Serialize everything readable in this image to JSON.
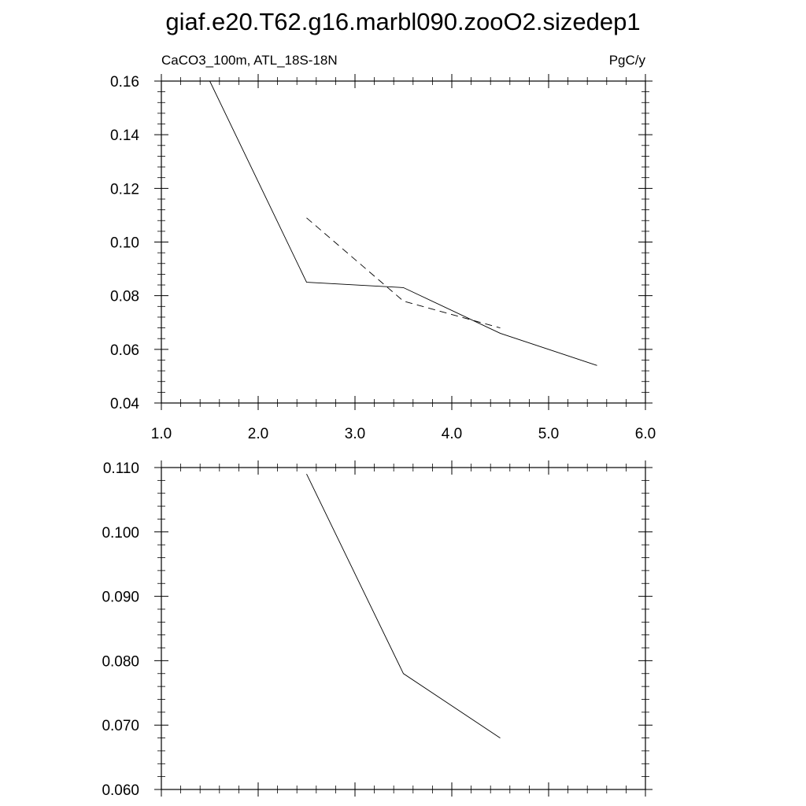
{
  "title": "giaf.e20.T62.g16.marbl090.zooO2.sizedep1",
  "chart_data": [
    {
      "type": "line",
      "left_label": "CaCO3_100m, ATL_18S-18N",
      "right_label": "PgC/y",
      "xlim": [
        1.0,
        6.0
      ],
      "ylim": [
        0.04,
        0.16
      ],
      "xticks": [
        1.0,
        2.0,
        3.0,
        4.0,
        5.0,
        6.0
      ],
      "xtick_labels": [
        "1.0",
        "2.0",
        "3.0",
        "4.0",
        "5.0",
        "6.0"
      ],
      "yticks": [
        0.04,
        0.06,
        0.08,
        0.1,
        0.12,
        0.14,
        0.16
      ],
      "ytick_labels": [
        "0.04",
        "0.06",
        "0.08",
        "0.10",
        "0.12",
        "0.14",
        "0.16"
      ],
      "grid": false,
      "series": [
        {
          "style": "solid",
          "color": "#000000",
          "x": [
            1.5,
            2.5,
            3.5,
            4.5,
            5.5
          ],
          "y": [
            0.16,
            0.085,
            0.083,
            0.066,
            0.054
          ]
        },
        {
          "style": "dashed",
          "color": "#000000",
          "x": [
            2.5,
            3.5,
            4.5
          ],
          "y": [
            0.109,
            0.078,
            0.068
          ]
        }
      ]
    },
    {
      "type": "line",
      "xlim": [
        1.0,
        6.0
      ],
      "ylim": [
        0.06,
        0.11
      ],
      "xticks": [
        1.0,
        2.0,
        3.0,
        4.0,
        5.0,
        6.0
      ],
      "yticks": [
        0.06,
        0.07,
        0.08,
        0.09,
        0.1,
        0.11
      ],
      "ytick_labels": [
        "0.060",
        "0.070",
        "0.080",
        "0.090",
        "0.100",
        "0.110"
      ],
      "grid": false,
      "series": [
        {
          "style": "solid",
          "color": "#000000",
          "x": [
            2.5,
            3.5,
            4.5
          ],
          "y": [
            0.109,
            0.078,
            0.068
          ]
        }
      ]
    }
  ]
}
